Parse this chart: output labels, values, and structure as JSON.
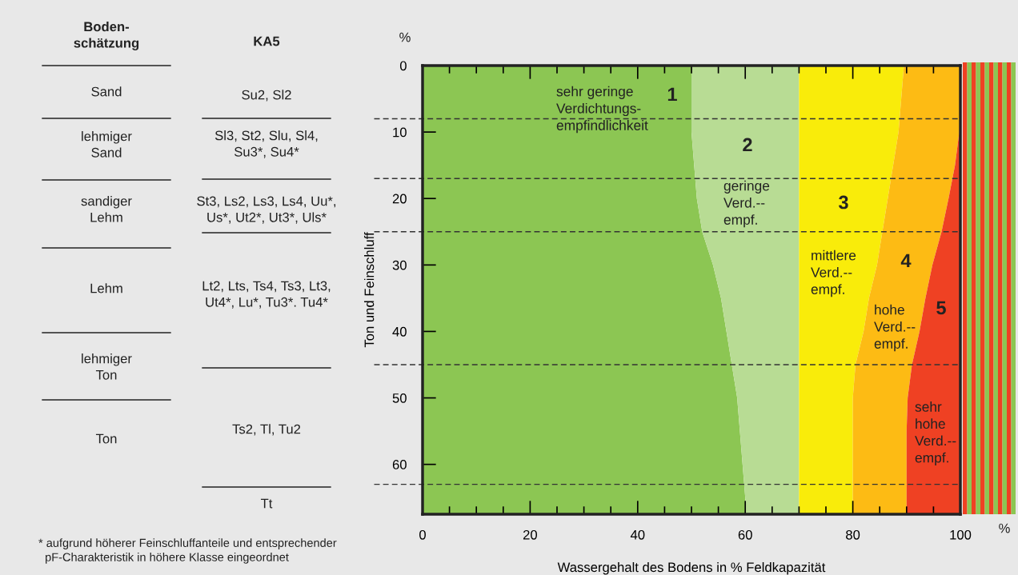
{
  "chart_data": {
    "type": "area",
    "orientation": "horizontal",
    "stacked": true,
    "x": [
      0,
      5,
      10,
      15,
      20,
      25,
      30,
      35,
      40,
      45,
      50,
      55,
      60,
      65,
      67.5
    ],
    "series": [
      {
        "color": "#8cc653",
        "values": [
          50,
          50,
          50,
          50.5,
          51,
          52,
          54,
          55.5,
          56.5,
          57.5,
          58.5,
          59,
          59.5,
          60,
          60
        ]
      },
      {
        "color": "#b8dc94",
        "values": [
          20,
          20,
          20,
          19.5,
          19,
          18,
          16,
          14.5,
          13.5,
          12.5,
          11.5,
          11,
          10.5,
          10,
          10
        ]
      },
      {
        "color": "#f9ec0a",
        "values": [
          19.5,
          19,
          18.5,
          17.5,
          16.5,
          15.5,
          14.5,
          13,
          12,
          10.5,
          10,
          10,
          10,
          10,
          10
        ]
      },
      {
        "color": "#fdbb14",
        "values": [
          10.5,
          11,
          11.3,
          11.5,
          11.3,
          11,
          10.3,
          10.5,
          10.4,
          10.5,
          10.2,
          10,
          10,
          10,
          10
        ]
      },
      {
        "color": "#ef4123",
        "values": [
          0,
          0,
          0.2,
          1,
          2.2,
          3.5,
          5.2,
          6.5,
          7.6,
          9,
          9.8,
          10,
          10,
          10,
          10
        ]
      }
    ],
    "xlim": [
      0,
      100
    ],
    "ylim": [
      67.5,
      0
    ],
    "xticks": [
      0,
      {
        "value": 5,
        "label": null
      },
      {
        "value": 10,
        "label": null
      },
      {
        "value": 15,
        "label": null
      },
      20,
      {
        "value": 25,
        "label": null
      },
      {
        "value": 30,
        "label": null
      },
      {
        "value": 35,
        "label": null
      },
      40,
      {
        "value": 45,
        "label": null
      },
      {
        "value": 50,
        "label": null
      },
      {
        "value": 55,
        "label": null
      },
      60,
      {
        "value": 65,
        "label": null
      },
      {
        "value": 70,
        "label": null
      },
      {
        "value": 75,
        "label": null
      },
      80,
      {
        "value": 85,
        "label": null
      },
      {
        "value": 90,
        "label": null
      },
      {
        "value": 95,
        "label": null
      },
      100
    ],
    "yticks": [
      0,
      10,
      20,
      30,
      40,
      50,
      60
    ],
    "xlabel": "Wassergehalt des Bodens in % Feldkapazität",
    "ylabel": "Ton und Feinschluff",
    "ref_lines": [
      {
        "axis": "y",
        "value": 8,
        "color": "#333333",
        "line_style": "dashed"
      },
      {
        "axis": "y",
        "value": 17,
        "color": "#333333",
        "line_style": "dashed"
      },
      {
        "axis": "y",
        "value": 25,
        "color": "#333333",
        "line_style": "dashed"
      },
      {
        "axis": "y",
        "value": 45,
        "color": "#333333",
        "line_style": "dashed"
      },
      {
        "axis": "y",
        "value": 63,
        "color": "#333333",
        "line_style": "dashed"
      }
    ],
    "annotations": [
      "1",
      "sehr geringe\nVerdichtungs-\nempfindlichkeit",
      "2",
      "geringe\nVerd.--\nempf.",
      "3",
      "mittlere\nVerd.--\nempf.",
      "4",
      "hohe\nVerd.--\nempf.",
      "5",
      "sehr\nhohe\nVerd.--\nempf.",
      "%",
      "%",
      "Boden-\nschätzung",
      "KA5",
      "Sand",
      "lehmiger\nSand",
      "sandiger\nLehm",
      "Lehm",
      "lehmiger\nTon",
      "Ton",
      "Su2, Sl2",
      "Sl3, St2, Slu, Sl4,\nSu3*, Su4*",
      "St3, Ls2, Ls3, Ls4, Uu*,\nUs*, Ut2*, Ut3*, Uls*",
      "Lt2, Lts, Ts4, Ts3, Lt3,\nUt4*, Lu*, Tu3*. Tu4*",
      "Ts2, Tl, Tu2",
      "Tt",
      "* aufgrund höherer Feinschluffanteile und entsprechender\n  pF-Charakteristik in höhere Klasse eingeordnet"
    ]
  }
}
